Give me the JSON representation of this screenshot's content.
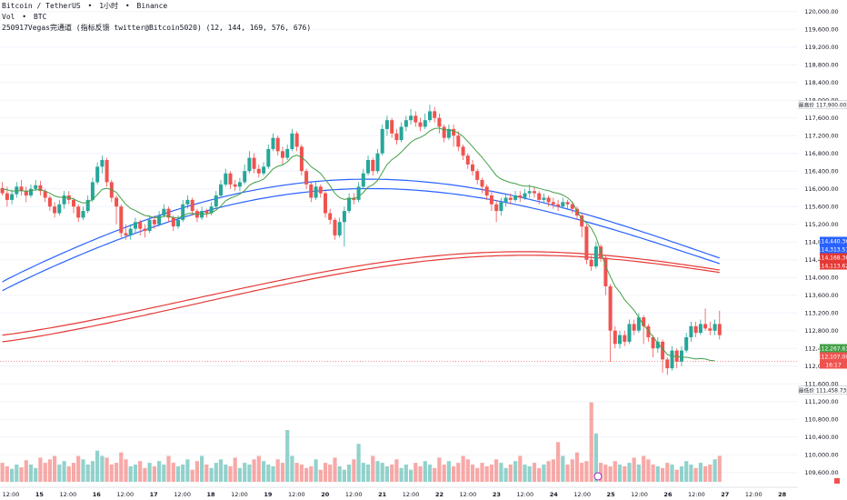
{
  "header": {
    "symbol_line": [
      "Bitcoin / TetherUS",
      "•",
      "1小时",
      "•",
      "Binance"
    ],
    "vol_line": [
      "Vol",
      "•",
      "BTC"
    ],
    "indicator_line": "250917Vegas完通道 (指标反馈  twitter@Bitcoin5020)  (12, 144, 169, 576, 676)"
  },
  "colors": {
    "up": "#26a69a",
    "down": "#ef5350",
    "ema12": "#43a047",
    "vegas_blue": "#2962ff",
    "vegas_red": "#e53935",
    "grid": "#f0f3fa",
    "axis_text": "#131722"
  },
  "right_axis": {
    "price_ticks": [
      "120,000.00",
      "119,600.00",
      "119,200.00",
      "118,800.00",
      "118,400.00",
      "118,000.00",
      "117,600.00",
      "117,200.00",
      "116,800.00",
      "116,400.00",
      "116,000.00",
      "115,600.00",
      "115,200.00",
      "114,800.00",
      "114,400.00",
      "114,000.00",
      "113,600.00",
      "113,200.00",
      "112,800.00",
      "112,400.00",
      "112,000.00",
      "111,600.00",
      "111,200.00",
      "110,800.00",
      "110,400.00",
      "110,000.00",
      "109,600.00"
    ],
    "high_tag": {
      "label": "最高价",
      "value": "117,900.00"
    },
    "low_tag": {
      "label": "最低价",
      "value": "111,458.73"
    },
    "price_tags": [
      {
        "value": "114,440.36",
        "color": "#2962ff"
      },
      {
        "value": "114,313.51",
        "color": "#2962ff"
      },
      {
        "value": "114,168.36",
        "color": "#e53935"
      },
      {
        "value": "114,113.62",
        "color": "#e53935"
      },
      {
        "value": "112,267.63",
        "color": "#43a047"
      },
      {
        "value": "112,107.00",
        "color": "#ef5350"
      },
      {
        "value": "16:17",
        "color": "#ef5350"
      }
    ]
  },
  "time_axis": {
    "labels": [
      "12:00",
      "15",
      "12:00",
      "16",
      "12:00",
      "17",
      "12:00",
      "18",
      "12:00",
      "19",
      "12:00",
      "20",
      "12:00",
      "21",
      "12:00",
      "22",
      "12:00",
      "23",
      "12:00",
      "24",
      "12:00",
      "25",
      "12:00",
      "26",
      "12:00",
      "27",
      "12:00",
      "28"
    ]
  },
  "chart_data": {
    "type": "candlestick",
    "ylim": [
      109450,
      120200
    ],
    "volume_max": 1,
    "grid": true,
    "x_count": 168,
    "candles": [
      [
        116020,
        115900,
        116150,
        115850
      ],
      [
        115900,
        115750,
        116050,
        115600
      ],
      [
        115750,
        115880,
        115980,
        115650
      ],
      [
        115880,
        116050,
        116150,
        115800
      ],
      [
        116050,
        115950,
        116200,
        115850
      ],
      [
        115950,
        115850,
        116050,
        115700
      ],
      [
        115850,
        116000,
        116100,
        115800
      ],
      [
        116000,
        116080,
        116200,
        115950
      ],
      [
        116080,
        115950,
        116180,
        115850
      ],
      [
        115950,
        115800,
        116000,
        115700
      ],
      [
        115800,
        115600,
        115850,
        115500
      ],
      [
        115600,
        115450,
        115700,
        115350
      ],
      [
        115450,
        115650,
        115750,
        115400
      ],
      [
        115650,
        115850,
        115950,
        115550
      ],
      [
        115850,
        115750,
        115950,
        115650
      ],
      [
        115750,
        115600,
        115800,
        115450
      ],
      [
        115600,
        115350,
        115650,
        115250
      ],
      [
        115350,
        115500,
        115600,
        115300
      ],
      [
        115500,
        115750,
        115850,
        115450
      ],
      [
        115750,
        116150,
        116250,
        115700
      ],
      [
        116150,
        116500,
        116600,
        116100
      ],
      [
        116500,
        116650,
        116750,
        116350
      ],
      [
        116650,
        116150,
        116700,
        116050
      ],
      [
        116150,
        115800,
        116200,
        115700
      ],
      [
        115800,
        115600,
        115850,
        115200
      ],
      [
        115600,
        115000,
        115650,
        114900
      ],
      [
        115000,
        114950,
        115200,
        114850
      ],
      [
        114950,
        115100,
        115200,
        114850
      ],
      [
        115100,
        115250,
        115350,
        115000
      ],
      [
        115250,
        115100,
        115300,
        114950
      ],
      [
        115100,
        115050,
        115200,
        114900
      ],
      [
        115050,
        115300,
        115400,
        115000
      ],
      [
        115300,
        115200,
        115400,
        115100
      ],
      [
        115200,
        115400,
        115500,
        115150
      ],
      [
        115400,
        115550,
        115650,
        115350
      ],
      [
        115550,
        115350,
        115600,
        115250
      ],
      [
        115350,
        115150,
        115400,
        115050
      ],
      [
        115150,
        115300,
        115400,
        115100
      ],
      [
        115300,
        115650,
        115750,
        115250
      ],
      [
        115650,
        115750,
        115850,
        115550
      ],
      [
        115750,
        115500,
        115800,
        115400
      ],
      [
        115500,
        115350,
        115550,
        115250
      ],
      [
        115350,
        115500,
        115600,
        115300
      ],
      [
        115500,
        115450,
        115550,
        115350
      ],
      [
        115450,
        115600,
        115700,
        115400
      ],
      [
        115600,
        115850,
        115950,
        115550
      ],
      [
        115850,
        116100,
        116200,
        115800
      ],
      [
        116100,
        116350,
        116450,
        116050
      ],
      [
        116350,
        116100,
        116400,
        116000
      ],
      [
        116100,
        116050,
        116200,
        115950
      ],
      [
        116050,
        116150,
        116250,
        115950
      ],
      [
        116150,
        116400,
        116550,
        116100
      ],
      [
        116400,
        116700,
        116850,
        116350
      ],
      [
        116700,
        116450,
        116800,
        116350
      ],
      [
        116450,
        116350,
        116550,
        116250
      ],
      [
        116350,
        116500,
        116600,
        116300
      ],
      [
        116500,
        116900,
        117000,
        116450
      ],
      [
        116900,
        117150,
        117250,
        116850
      ],
      [
        117150,
        116850,
        117200,
        116750
      ],
      [
        116850,
        116700,
        116950,
        116550
      ],
      [
        116700,
        116900,
        117000,
        116650
      ],
      [
        116900,
        117250,
        117350,
        116850
      ],
      [
        117250,
        116950,
        117300,
        116850
      ],
      [
        116950,
        116400,
        117000,
        116300
      ],
      [
        116400,
        116100,
        116450,
        116000
      ],
      [
        116100,
        115800,
        116150,
        115700
      ],
      [
        115800,
        116050,
        116150,
        115750
      ],
      [
        116050,
        115900,
        116100,
        115800
      ],
      [
        115900,
        115450,
        115950,
        115350
      ],
      [
        115450,
        115300,
        115550,
        115200
      ],
      [
        115300,
        114950,
        115350,
        114850
      ],
      [
        114950,
        115250,
        115350,
        114900
      ],
      [
        115250,
        115500,
        115600,
        114700
      ],
      [
        115500,
        115800,
        115900,
        115450
      ],
      [
        115800,
        115750,
        115900,
        115650
      ],
      [
        115750,
        116050,
        116150,
        115700
      ],
      [
        116050,
        116350,
        116450,
        116000
      ],
      [
        116350,
        116650,
        116750,
        116300
      ],
      [
        116650,
        116400,
        116700,
        116300
      ],
      [
        116400,
        116800,
        116900,
        116350
      ],
      [
        116800,
        117350,
        117450,
        116750
      ],
      [
        117350,
        117550,
        117650,
        117200
      ],
      [
        117550,
        117250,
        117600,
        117150
      ],
      [
        117250,
        117100,
        117350,
        117000
      ],
      [
        117100,
        117400,
        117500,
        117050
      ],
      [
        117400,
        117550,
        117650,
        117300
      ],
      [
        117550,
        117650,
        117800,
        117450
      ],
      [
        117650,
        117500,
        117750,
        117400
      ],
      [
        117500,
        117400,
        117600,
        117300
      ],
      [
        117400,
        117550,
        117700,
        117350
      ],
      [
        117550,
        117750,
        117900,
        117500
      ],
      [
        117750,
        117600,
        117850,
        117500
      ],
      [
        117600,
        117400,
        117700,
        117250
      ],
      [
        117400,
        117150,
        117450,
        117050
      ],
      [
        117150,
        117350,
        117450,
        117100
      ],
      [
        117350,
        117200,
        117450,
        116950
      ],
      [
        117200,
        116950,
        117300,
        116850
      ],
      [
        116950,
        116750,
        117000,
        116650
      ],
      [
        116750,
        116550,
        116800,
        116450
      ],
      [
        116550,
        116400,
        116650,
        116300
      ],
      [
        116400,
        116200,
        116450,
        116100
      ],
      [
        116200,
        116050,
        116250,
        115900
      ],
      [
        116050,
        115850,
        116100,
        115750
      ],
      [
        115850,
        115650,
        115950,
        115500
      ],
      [
        115650,
        115500,
        115750,
        115250
      ],
      [
        115500,
        115700,
        115800,
        115400
      ],
      [
        115700,
        115800,
        115900,
        115600
      ],
      [
        115800,
        115750,
        115900,
        115650
      ],
      [
        115750,
        115850,
        115950,
        115700
      ],
      [
        115850,
        115800,
        115950,
        115700
      ],
      [
        115800,
        115900,
        116000,
        115750
      ],
      [
        115900,
        115950,
        116100,
        115800
      ],
      [
        115950,
        115900,
        116050,
        115800
      ],
      [
        115900,
        115750,
        115950,
        115650
      ],
      [
        115750,
        115800,
        115900,
        115700
      ],
      [
        115800,
        115700,
        115850,
        115600
      ],
      [
        115700,
        115650,
        115800,
        115550
      ],
      [
        115650,
        115600,
        115750,
        115500
      ],
      [
        115600,
        115700,
        115800,
        115550
      ],
      [
        115700,
        115650,
        115750,
        115550
      ],
      [
        115650,
        115550,
        115700,
        115450
      ],
      [
        115550,
        115400,
        115600,
        115300
      ],
      [
        115400,
        115150,
        115450,
        114900
      ],
      [
        115150,
        114400,
        115200,
        114300
      ],
      [
        114400,
        114250,
        114500,
        114150
      ],
      [
        114250,
        114700,
        114800,
        114200
      ],
      [
        114700,
        114450,
        114750,
        114350
      ],
      [
        114450,
        113800,
        114500,
        113600
      ],
      [
        113800,
        112800,
        113850,
        112100
      ],
      [
        112800,
        112500,
        112900,
        112400
      ],
      [
        112500,
        112700,
        112800,
        112400
      ],
      [
        112700,
        112550,
        112800,
        112450
      ],
      [
        112550,
        112950,
        113050,
        112500
      ],
      [
        112950,
        112800,
        113050,
        112700
      ],
      [
        112800,
        113100,
        113200,
        112750
      ],
      [
        113100,
        112900,
        113150,
        112500
      ],
      [
        112900,
        112650,
        112950,
        112550
      ],
      [
        112650,
        112400,
        112700,
        112200
      ],
      [
        112400,
        112550,
        112650,
        112300
      ],
      [
        112550,
        112150,
        112600,
        111850
      ],
      [
        112150,
        111950,
        112200,
        111800
      ],
      [
        111950,
        112350,
        112450,
        111900
      ],
      [
        112350,
        112100,
        112400,
        111950
      ],
      [
        112100,
        112350,
        112450,
        112000
      ],
      [
        112350,
        112650,
        112750,
        112300
      ],
      [
        112650,
        112900,
        113000,
        112550
      ],
      [
        112900,
        112750,
        113000,
        112650
      ],
      [
        112750,
        112950,
        113050,
        112700
      ],
      [
        112950,
        112850,
        113300,
        112800
      ],
      [
        112850,
        112800,
        113000,
        112700
      ],
      [
        112800,
        112950,
        113050,
        112700
      ],
      [
        112950,
        112700,
        113250,
        112600
      ],
      [
        112700,
        112500,
        112750,
        112400
      ],
      [
        112500,
        112300,
        112550,
        112150
      ],
      [
        112300,
        112050,
        112350,
        111900
      ],
      [
        112050,
        111800,
        112100,
        111600
      ],
      [
        111800,
        111650,
        111850,
        111500
      ],
      [
        111650,
        111900,
        112000,
        111550
      ],
      [
        111900,
        112150,
        112250,
        111850
      ],
      [
        112150,
        112107,
        112300,
        112000
      ],
      [
        112107,
        112107,
        112107,
        112107
      ],
      [
        112107,
        112107,
        112107,
        112107
      ],
      [
        112107,
        112107,
        112107,
        112107
      ],
      [
        112107,
        112107,
        112107,
        112107
      ],
      [
        112107,
        112107,
        112107,
        112107
      ],
      [
        112107,
        112107,
        112107,
        112107
      ],
      [
        112107,
        112107,
        112107,
        112107
      ],
      [
        112107,
        112107,
        112107,
        112107
      ]
    ],
    "visible_candles": 152,
    "volumes": [
      0.22,
      0.18,
      0.15,
      0.2,
      0.17,
      0.25,
      0.2,
      0.16,
      0.28,
      0.22,
      0.26,
      0.3,
      0.2,
      0.24,
      0.18,
      0.22,
      0.3,
      0.26,
      0.2,
      0.24,
      0.36,
      0.3,
      0.28,
      0.2,
      0.22,
      0.34,
      0.26,
      0.18,
      0.2,
      0.24,
      0.16,
      0.22,
      0.18,
      0.24,
      0.2,
      0.3,
      0.22,
      0.18,
      0.2,
      0.26,
      0.14,
      0.24,
      0.3,
      0.2,
      0.16,
      0.22,
      0.26,
      0.2,
      0.18,
      0.28,
      0.16,
      0.22,
      0.2,
      0.26,
      0.3,
      0.24,
      0.2,
      0.18,
      0.26,
      0.22,
      0.6,
      0.3,
      0.22,
      0.2,
      0.16,
      0.18,
      0.26,
      0.14,
      0.22,
      0.2,
      0.28,
      0.18,
      0.14,
      0.2,
      0.26,
      0.44,
      0.22,
      0.2,
      0.3,
      0.24,
      0.22,
      0.18,
      0.2,
      0.26,
      0.16,
      0.2,
      0.14,
      0.22,
      0.18,
      0.24,
      0.2,
      0.16,
      0.28,
      0.2,
      0.24,
      0.18,
      0.22,
      0.3,
      0.26,
      0.2,
      0.16,
      0.22,
      0.18,
      0.2,
      0.26,
      0.22,
      0.16,
      0.2,
      0.24,
      0.3,
      0.2,
      0.18,
      0.22,
      0.16,
      0.2,
      0.24,
      0.26,
      0.46,
      0.3,
      0.2,
      0.26,
      0.34,
      0.22,
      0.24,
      0.92,
      0.56,
      0.22,
      0.2,
      0.18,
      0.24,
      0.2,
      0.18,
      0.22,
      0.28,
      0.2,
      0.3,
      0.26,
      0.2,
      0.18,
      0.16,
      0.22,
      0.2,
      0.14,
      0.18,
      0.24,
      0.2,
      0.16,
      0.22,
      0.18,
      0.2,
      0.26,
      0.3,
      0.24,
      0.2,
      0.18,
      0.2,
      0.22
    ],
    "ema12": [
      116000,
      115980,
      115950,
      115960,
      115960,
      115950,
      115960,
      115980,
      115980,
      115950,
      115900,
      115840,
      115810,
      115810,
      115800,
      115770,
      115720,
      115680,
      115690,
      115760,
      115870,
      115990,
      116010,
      115980,
      115920,
      115780,
      115650,
      115560,
      115510,
      115450,
      115400,
      115380,
      115350,
      115350,
      115380,
      115380,
      115350,
      115340,
      115390,
      115440,
      115450,
      115420,
      115430,
      115430,
      115460,
      115520,
      115610,
      115730,
      115790,
      115830,
      115880,
      115960,
      116080,
      116140,
      116170,
      116220,
      116330,
      116450,
      116510,
      116540,
      116610,
      116720,
      116760,
      116710,
      116620,
      116500,
      116430,
      116350,
      116210,
      116070,
      115900,
      115800,
      115760,
      115780,
      115780,
      115820,
      115920,
      116040,
      116090,
      116190,
      116370,
      116550,
      116660,
      116730,
      116830,
      116940,
      117050,
      117120,
      117160,
      117220,
      117310,
      117360,
      117370,
      117330,
      117330,
      117310,
      117260,
      117180,
      117070,
      116950,
      116830,
      116710,
      116580,
      116440,
      116300,
      116220,
      116180,
      116140,
      116120,
      116080,
      116060,
      116060,
      116040,
      116010,
      115980,
      115960,
      115920,
      115900,
      115860,
      115800,
      115700,
      115500,
      115320,
      115230,
      115110,
      114910,
      114580,
      114260,
      114020,
      113800,
      113670,
      113500,
      113380,
      113260,
      113100,
      112930,
      112800,
      112660,
      112520,
      112390,
      112260,
      112220,
      112220,
      112200,
      112200,
      112180,
      112160,
      112170,
      112160,
      112130,
      112120
    ]
  }
}
